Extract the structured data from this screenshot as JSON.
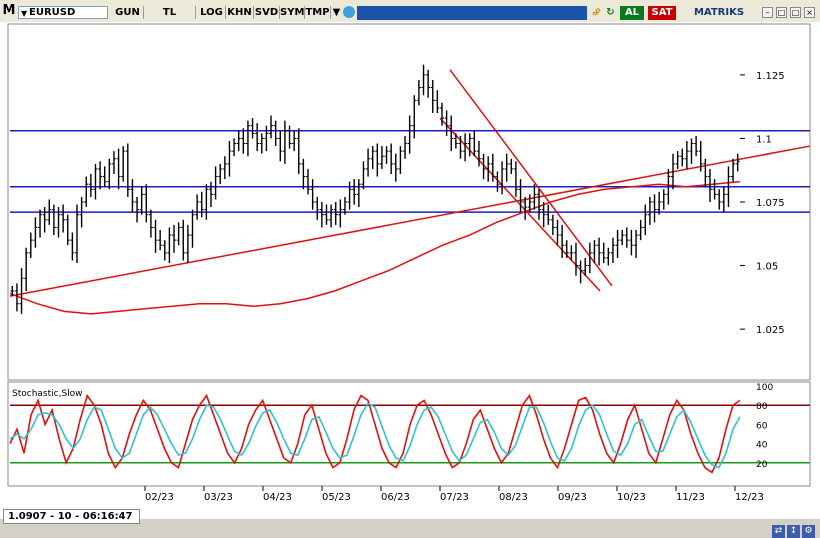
{
  "toolbar": {
    "logo": "M",
    "symbol": "EURUSD",
    "buttons": [
      "GUN",
      "TL",
      "LOG",
      "KHN",
      "SVD",
      "SYM",
      "TMP"
    ],
    "buy_label": "AL",
    "sell_label": "SAT",
    "brand": "MATRIKS",
    "icons": [
      "dropdown-icon",
      "twitter-icon",
      "lightning-icon",
      "refresh-icon",
      "minimize-icon",
      "maximize-icon",
      "close-icon"
    ]
  },
  "status_text": "1.0907 - 10 - 06:16:47",
  "colors": {
    "level_line": "#1b1bcc",
    "trend_line": "#e01010",
    "stoch_k": "#e01010",
    "stoch_d": "#2ec4c8",
    "upper_band": "#8b0000",
    "lower_band": "#1a9a1a"
  },
  "chart_data": [
    {
      "type": "ohlc",
      "symbol": "EURUSD",
      "x_tick_labels": [
        "02/23",
        "03/23",
        "04/23",
        "05/23",
        "06/23",
        "07/23",
        "08/23",
        "09/23",
        "10/23",
        "11/23",
        "12/23"
      ],
      "y_tick_labels": [
        "1.125",
        "1.1",
        "1.075",
        "1.05",
        "1.025"
      ],
      "ylim": [
        1.005,
        1.145
      ],
      "close_path": [
        1.04,
        1.035,
        1.045,
        1.055,
        1.06,
        1.065,
        1.07,
        1.068,
        1.072,
        1.065,
        1.07,
        1.068,
        1.06,
        1.055,
        1.07,
        1.075,
        1.082,
        1.08,
        1.088,
        1.085,
        1.083,
        1.09,
        1.092,
        1.085,
        1.095,
        1.08,
        1.075,
        1.072,
        1.078,
        1.07,
        1.065,
        1.06,
        1.058,
        1.055,
        1.062,
        1.06,
        1.065,
        1.055,
        1.062,
        1.07,
        1.075,
        1.072,
        1.08,
        1.078,
        1.085,
        1.088,
        1.09,
        1.095,
        1.098,
        1.1,
        1.098,
        1.105,
        1.102,
        1.098,
        1.1,
        1.102,
        1.105,
        1.1,
        1.095,
        1.103,
        1.098,
        1.1,
        1.09,
        1.085,
        1.08,
        1.075,
        1.072,
        1.07,
        1.068,
        1.072,
        1.07,
        1.072,
        1.075,
        1.08,
        1.078,
        1.082,
        1.088,
        1.092,
        1.095,
        1.09,
        1.093,
        1.095,
        1.09,
        1.088,
        1.095,
        1.098,
        1.105,
        1.115,
        1.12,
        1.125,
        1.12,
        1.115,
        1.112,
        1.108,
        1.105,
        1.1,
        1.098,
        1.095,
        1.098,
        1.1,
        1.095,
        1.092,
        1.088,
        1.09,
        1.085,
        1.082,
        1.088,
        1.09,
        1.088,
        1.08,
        1.075,
        1.073,
        1.075,
        1.078,
        1.072,
        1.07,
        1.068,
        1.065,
        1.062,
        1.058,
        1.055,
        1.055,
        1.05,
        1.048,
        1.05,
        1.055,
        1.058,
        1.055,
        1.053,
        1.055,
        1.058,
        1.06,
        1.062,
        1.06,
        1.058,
        1.062,
        1.065,
        1.07,
        1.075,
        1.072,
        1.075,
        1.078,
        1.085,
        1.09,
        1.093,
        1.092,
        1.095,
        1.098,
        1.095,
        1.09,
        1.085,
        1.08,
        1.078,
        1.075,
        1.078,
        1.085,
        1.09,
        1.091
      ],
      "horizontal_levels": [
        1.103,
        1.081,
        1.071
      ],
      "trend_channel": {
        "upper": [
          [
            1.127,
            0
          ],
          [
            1.042,
            1
          ]
        ],
        "lower": [
          [
            1.108,
            0
          ],
          [
            1.04,
            1
          ]
        ]
      },
      "support_line": [
        1.038,
        1.097
      ],
      "moving_average": [
        1.039,
        1.035,
        1.032,
        1.031,
        1.032,
        1.033,
        1.034,
        1.035,
        1.035,
        1.034,
        1.035,
        1.037,
        1.04,
        1.044,
        1.048,
        1.053,
        1.058,
        1.062,
        1.067,
        1.071,
        1.075,
        1.078,
        1.08,
        1.081,
        1.082,
        1.081,
        1.082,
        1.083
      ]
    },
    {
      "type": "line",
      "title": "Stochastic,Slow",
      "y_tick_labels": [
        "100",
        "80",
        "60",
        "40",
        "20"
      ],
      "ylim": [
        0,
        100
      ],
      "overbought": 80,
      "oversold": 20,
      "series": [
        {
          "values": [
            40,
            55,
            30,
            70,
            85,
            60,
            75,
            45,
            20,
            35,
            65,
            90,
            80,
            60,
            30,
            15,
            25,
            50,
            70,
            85,
            75,
            55,
            35,
            20,
            15,
            40,
            65,
            80,
            90,
            70,
            50,
            30,
            20,
            35,
            60,
            75,
            85,
            65,
            45,
            25,
            20,
            40,
            70,
            80,
            55,
            30,
            15,
            20,
            45,
            75,
            90,
            85,
            60,
            35,
            20,
            15,
            30,
            60,
            80,
            85,
            70,
            50,
            30,
            15,
            20,
            40,
            65,
            75,
            55,
            35,
            20,
            30,
            55,
            80,
            90,
            70,
            45,
            25,
            15,
            35,
            60,
            85,
            88,
            75,
            50,
            30,
            20,
            40,
            65,
            80,
            55,
            30,
            20,
            45,
            70,
            85,
            75,
            50,
            30,
            15,
            10,
            25,
            55,
            80,
            85
          ]
        },
        {
          "values": [
            45,
            50,
            45,
            55,
            70,
            72,
            70,
            60,
            45,
            35,
            45,
            65,
            78,
            75,
            55,
            35,
            25,
            30,
            50,
            70,
            78,
            70,
            55,
            40,
            28,
            30,
            45,
            65,
            80,
            78,
            65,
            48,
            32,
            28,
            40,
            58,
            72,
            75,
            62,
            45,
            30,
            28,
            45,
            65,
            68,
            52,
            35,
            25,
            28,
            48,
            70,
            82,
            78,
            58,
            38,
            25,
            22,
            38,
            60,
            75,
            78,
            68,
            50,
            32,
            22,
            28,
            45,
            62,
            65,
            52,
            35,
            28,
            38,
            58,
            78,
            78,
            62,
            42,
            25,
            22,
            35,
            58,
            75,
            80,
            70,
            50,
            32,
            28,
            40,
            60,
            65,
            48,
            32,
            32,
            50,
            68,
            75,
            62,
            45,
            28,
            18,
            15,
            30,
            55,
            68
          ]
        }
      ]
    }
  ]
}
